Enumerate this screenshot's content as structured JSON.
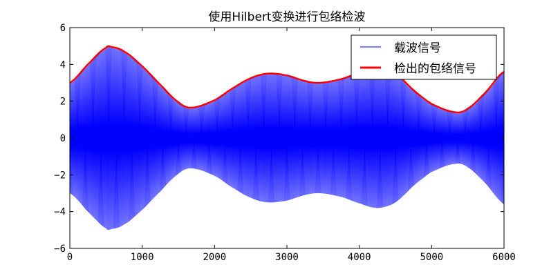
{
  "chart_data": {
    "type": "line",
    "title": "使用Hilbert变换进行包络检波",
    "xlabel": "",
    "ylabel": "",
    "xlim": [
      0,
      6000
    ],
    "ylim": [
      -6,
      6
    ],
    "xticks": [
      "0",
      "1000",
      "2000",
      "3000",
      "4000",
      "5000",
      "6000"
    ],
    "yticks": [
      "−6",
      "−4",
      "−2",
      "0",
      "2",
      "4",
      "6"
    ],
    "grid": false,
    "legend_position": "top-right",
    "series": [
      {
        "name": "载波信号",
        "color": "#0000ff",
        "kind": "high-frequency carrier oscillating between -envelope and +envelope"
      },
      {
        "name": "检出的包络信号",
        "color": "#ff0000",
        "x": [
          0,
          250,
          500,
          570,
          750,
          1000,
          1250,
          1500,
          1680,
          2000,
          2250,
          2500,
          2730,
          3000,
          3250,
          3450,
          3750,
          4000,
          4250,
          4500,
          4750,
          5000,
          5330,
          5500,
          5750,
          6000
        ],
        "y": [
          3.0,
          4.0,
          4.9,
          4.95,
          4.7,
          3.9,
          2.9,
          1.95,
          1.65,
          2.05,
          2.7,
          3.25,
          3.5,
          3.4,
          3.1,
          3.0,
          3.2,
          3.55,
          3.8,
          3.5,
          2.6,
          1.85,
          1.4,
          1.6,
          2.5,
          3.6
        ]
      }
    ]
  }
}
